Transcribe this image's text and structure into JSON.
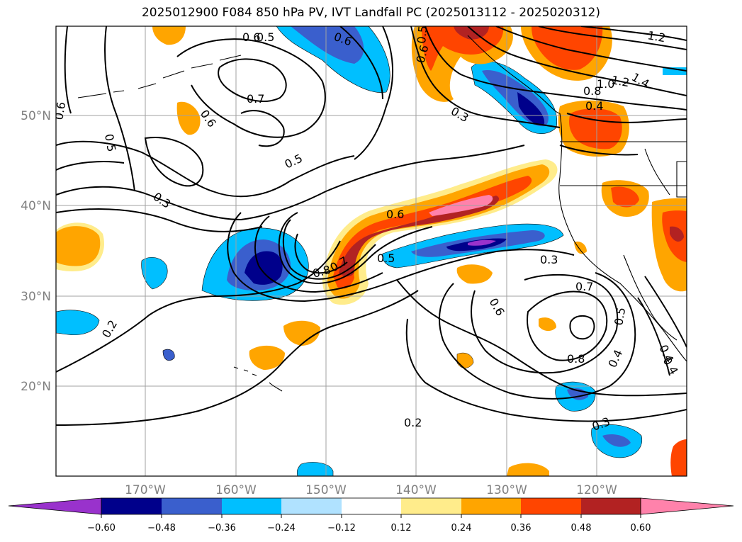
{
  "title": "2025012900 F084 850 hPa PV, IVT Landfall PC (2025013112 - 2025020312)",
  "lon_labels": [
    "170°W",
    "160°W",
    "150°W",
    "140°W",
    "130°W",
    "120°W"
  ],
  "lat_labels": [
    "50°N",
    "40°N",
    "30°N",
    "20°N"
  ],
  "contour_labels": [
    "0.6",
    "0.5",
    "0.3",
    "0.6",
    "0.7",
    "0.6",
    "0.5",
    "0.6",
    "0.6",
    "0.3",
    "0.5",
    "0.8",
    "0.7",
    "0.6",
    "0.5",
    "0.3",
    "0.6",
    "0.7",
    "0.8",
    "0.5",
    "0.4",
    "0.4",
    "0.3",
    "0.2",
    "0.2",
    "0.4",
    "1.2",
    "1.4",
    "1.2",
    "1.0",
    "0.8",
    "0.4",
    "0.5"
  ],
  "colorbar": {
    "ticks": [
      "−0.60",
      "−0.48",
      "−0.36",
      "−0.24",
      "−0.12",
      "0.12",
      "0.24",
      "0.36",
      "0.48",
      "0.60"
    ],
    "colors": [
      "#9932cc",
      "#00008b",
      "#3a5fcd",
      "#00bfff",
      "#b0e2ff",
      "#ffffff",
      "#ffec8b",
      "#ffa500",
      "#ff4500",
      "#b22222",
      "#ff82ab"
    ]
  }
}
